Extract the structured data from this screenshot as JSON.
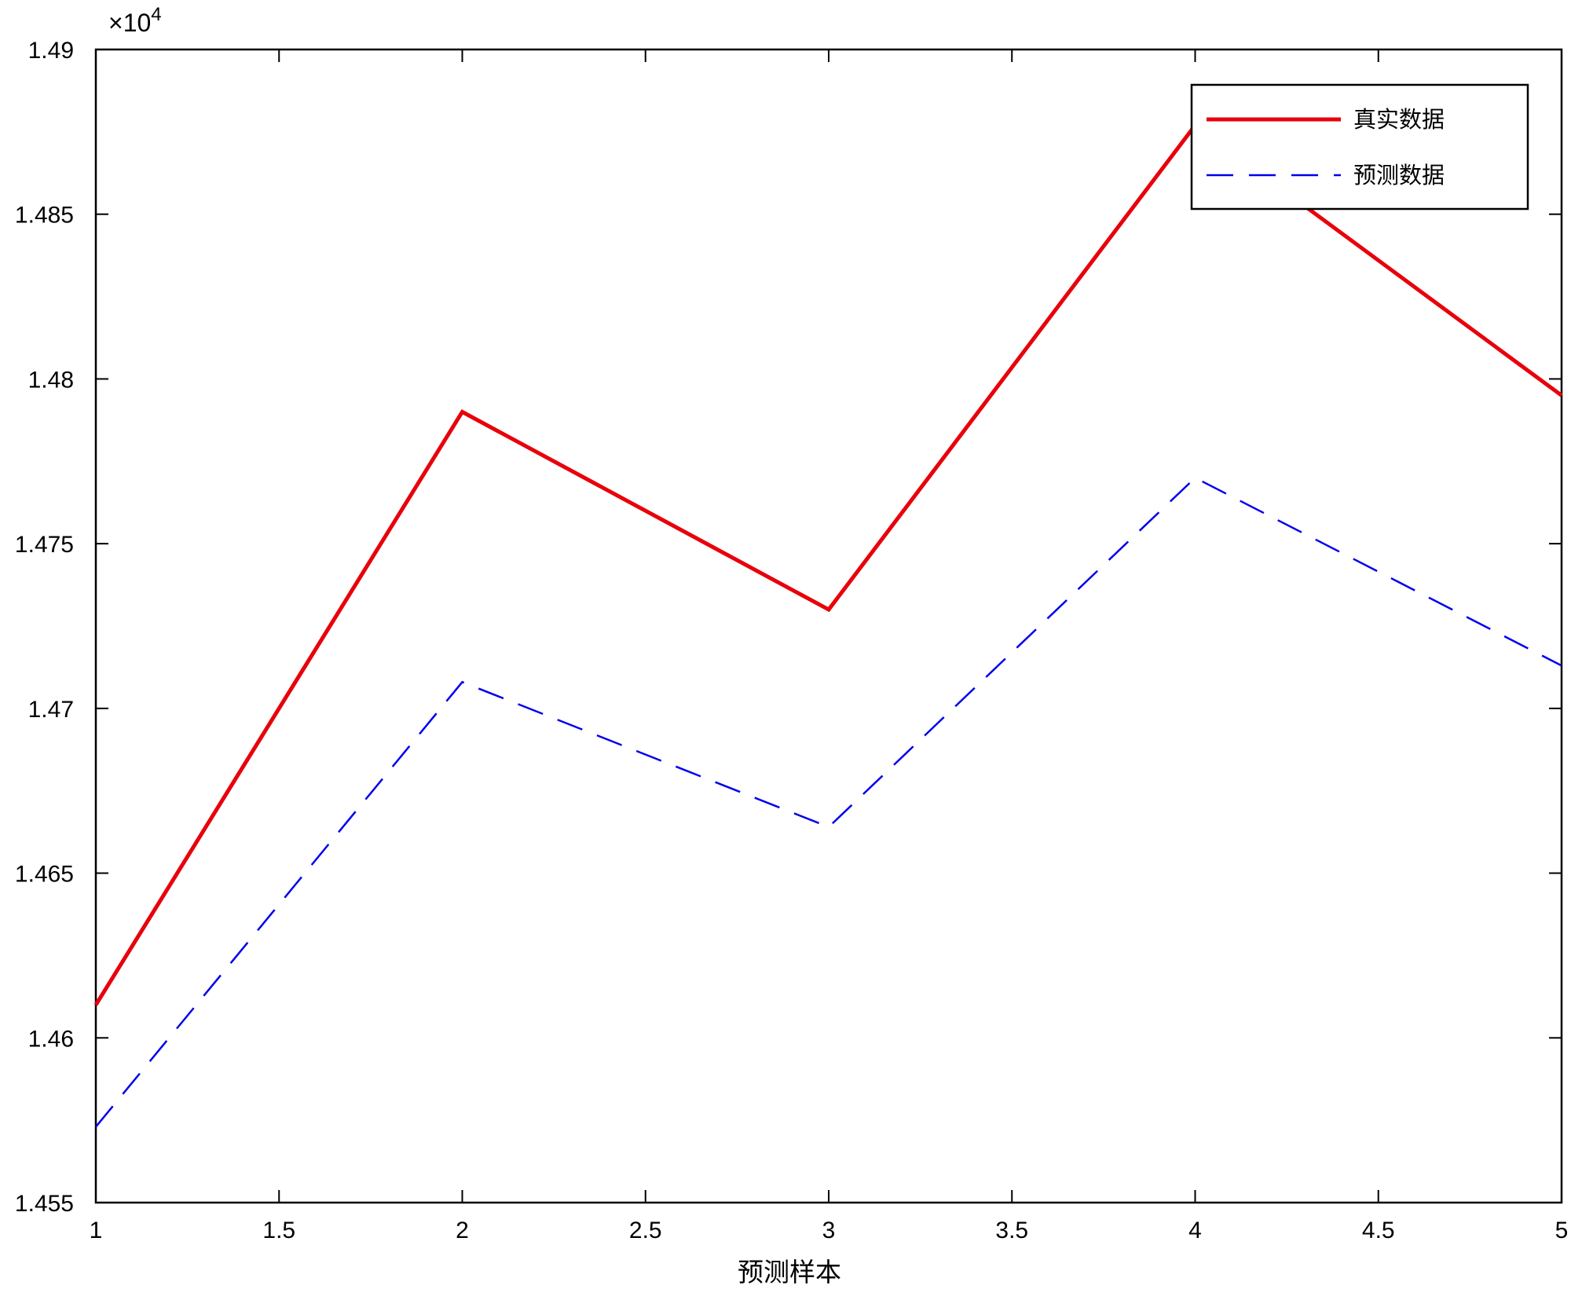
{
  "chart_data": {
    "type": "line",
    "xlabel": "预测样本",
    "ylabel": "",
    "xlim": [
      1,
      5
    ],
    "ylim": [
      14550,
      14900
    ],
    "x_ticks": [
      1,
      1.5,
      2,
      2.5,
      3,
      3.5,
      4,
      4.5,
      5
    ],
    "x_tick_labels": [
      "1",
      "1.5",
      "2",
      "2.5",
      "3",
      "3.5",
      "4",
      "4.5",
      "5"
    ],
    "y_ticks": [
      14550,
      14600,
      14650,
      14700,
      14750,
      14800,
      14850,
      14900
    ],
    "y_tick_labels": [
      "1.455",
      "1.46",
      "1.465",
      "1.47",
      "1.475",
      "1.48",
      "1.485",
      "1.49"
    ],
    "y_exponent_label": "×10",
    "y_exponent_power": "4",
    "grid": false,
    "legend_position": "top-right",
    "x": [
      1,
      2,
      3,
      4,
      5
    ],
    "series": [
      {
        "name": "真实数据",
        "values": [
          14610,
          14790,
          14730,
          14877,
          14795
        ],
        "color": "#e8000b",
        "style": "solid"
      },
      {
        "name": "预测数据",
        "values": [
          14573,
          14708,
          14664,
          14770,
          14713
        ],
        "color": "#0000ee",
        "style": "dashed"
      }
    ]
  }
}
